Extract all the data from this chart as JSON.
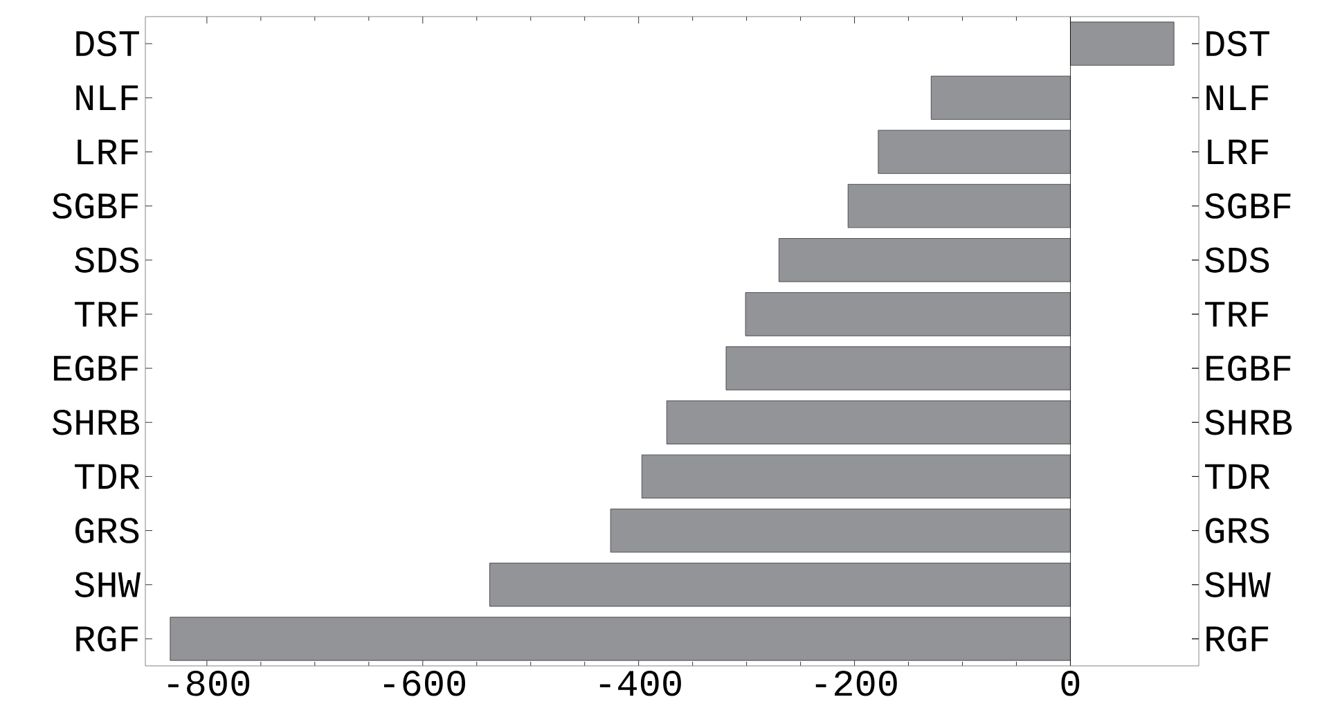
{
  "chart_data": {
    "type": "bar",
    "orientation": "horizontal",
    "categories": [
      "DST",
      "NLF",
      "LRF",
      "SGBF",
      "SDS",
      "TRF",
      "EGBF",
      "SHRB",
      "TDR",
      "GRS",
      "SHW",
      "RGF"
    ],
    "values": [
      96,
      -129,
      -178,
      -206,
      -270,
      -301,
      -319,
      -374,
      -397,
      -426,
      -538,
      -834
    ],
    "color": "#939497",
    "xlim": [
      -857,
      119
    ],
    "xticks": [
      -800,
      -600,
      -400,
      -200,
      0
    ]
  }
}
